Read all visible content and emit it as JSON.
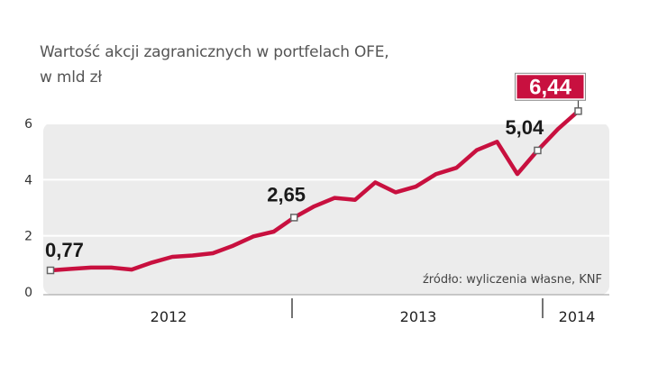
{
  "chart_data": {
    "type": "line",
    "title": "Wartość akcji zagranicznych w portfelach OFE,",
    "subtitle": "w mld zł",
    "ylim": [
      0,
      6.5
    ],
    "yticks": [
      0,
      2,
      4,
      6
    ],
    "x_period_labels": [
      "2012",
      "2013",
      "2014"
    ],
    "source": "źródło: wyliczenia własne, KNF",
    "grid": true,
    "colors": {
      "line": "#c8103f",
      "highlight": "#c8103f",
      "plot_bg": "#ececec",
      "marker": "#666666"
    },
    "series": [
      {
        "x": [
          0,
          1,
          2,
          3,
          4,
          5,
          6,
          7,
          8,
          9,
          10,
          11,
          12,
          13,
          14,
          15,
          16,
          17,
          18,
          19,
          20,
          21,
          22,
          23,
          24,
          25,
          26,
          27
        ],
        "values": [
          0.77,
          0.82,
          0.87,
          0.87,
          0.8,
          1.05,
          1.25,
          1.3,
          1.38,
          1.65,
          1.98,
          2.15,
          2.65,
          3.05,
          3.35,
          3.28,
          3.9,
          3.55,
          3.75,
          4.2,
          4.42,
          5.05,
          5.35,
          4.2,
          5.04,
          5.8,
          6.44,
          6.44
        ]
      }
    ],
    "point_labels": [
      {
        "index": 0,
        "text": "0,77",
        "highlight": false
      },
      {
        "index": 12,
        "text": "2,65",
        "highlight": false
      },
      {
        "index": 24,
        "text": "5,04",
        "highlight": false
      },
      {
        "index": 26,
        "text": "6,44",
        "highlight": true
      }
    ]
  }
}
